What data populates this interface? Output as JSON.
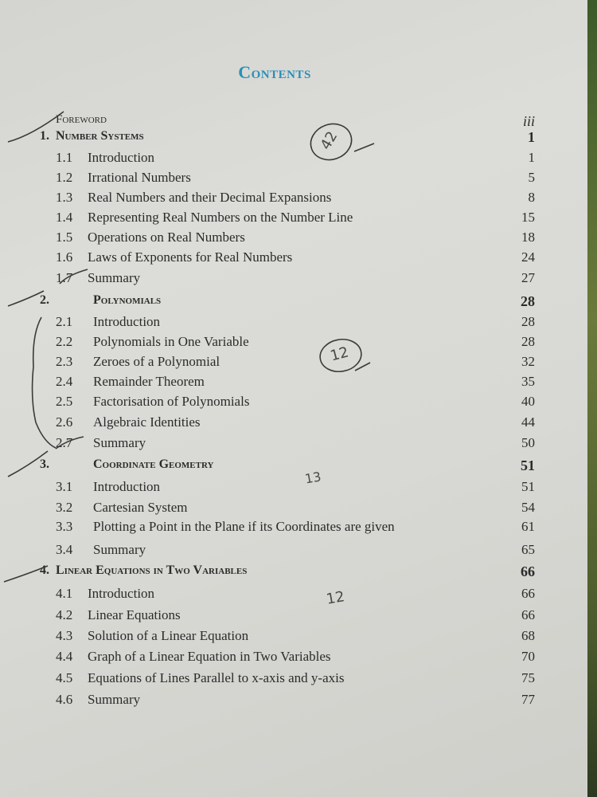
{
  "title": "Contents",
  "entries": [
    {
      "kind": "front",
      "num": "",
      "label": "Foreword",
      "page": "iii"
    },
    {
      "kind": "chapter",
      "num": "1.",
      "label": "Number Systems",
      "page": "1"
    },
    {
      "kind": "section",
      "num": "1.1",
      "label": "Introduction",
      "page": "1"
    },
    {
      "kind": "section",
      "num": "1.2",
      "label": "Irrational Numbers",
      "page": "5"
    },
    {
      "kind": "section",
      "num": "1.3",
      "label": "Real Numbers and their Decimal Expansions",
      "page": "8"
    },
    {
      "kind": "section",
      "num": "1.4",
      "label": "Representing Real Numbers on the Number Line",
      "page": "15"
    },
    {
      "kind": "section",
      "num": "1.5",
      "label": "Operations on Real Numbers",
      "page": "18"
    },
    {
      "kind": "section",
      "num": "1.6",
      "label": "Laws of Exponents for Real Numbers",
      "page": "24"
    },
    {
      "kind": "section",
      "num": "1.7",
      "label": "Summary",
      "page": "27"
    },
    {
      "kind": "chapter",
      "num": "2.",
      "label": "Polynomials",
      "page": "28"
    },
    {
      "kind": "section",
      "num": "2.1",
      "label": "Introduction",
      "page": "28"
    },
    {
      "kind": "section",
      "num": "2.2",
      "label": "Polynomials in One Variable",
      "page": "28"
    },
    {
      "kind": "section",
      "num": "2.3",
      "label": "Zeroes of a Polynomial",
      "page": "32"
    },
    {
      "kind": "section",
      "num": "2.4",
      "label": "Remainder Theorem",
      "page": "35"
    },
    {
      "kind": "section",
      "num": "2.5",
      "label": "Factorisation of Polynomials",
      "page": "40"
    },
    {
      "kind": "section",
      "num": "2.6",
      "label": "Algebraic Identities",
      "page": "44"
    },
    {
      "kind": "section",
      "num": "2.7",
      "label": "Summary",
      "page": "50"
    },
    {
      "kind": "chapter",
      "num": "3.",
      "label": "Coordinate Geometry",
      "page": "51"
    },
    {
      "kind": "section",
      "num": "3.1",
      "label": "Introduction",
      "page": "51"
    },
    {
      "kind": "section",
      "num": "3.2",
      "label": "Cartesian System",
      "page": "54"
    },
    {
      "kind": "section",
      "num": "3.3",
      "label": "Plotting a Point in the Plane if its Coordinates are given",
      "page": "61"
    },
    {
      "kind": "section",
      "num": "3.4",
      "label": "Summary",
      "page": "65"
    },
    {
      "kind": "chapter",
      "num": "4.",
      "label": "Linear Equations in Two Variables",
      "page": "66"
    },
    {
      "kind": "section",
      "num": "4.1",
      "label": "Introduction",
      "page": "66"
    },
    {
      "kind": "section",
      "num": "4.2",
      "label": "Linear Equations",
      "page": "66"
    },
    {
      "kind": "section",
      "num": "4.3",
      "label": "Solution of a Linear Equation",
      "page": "68"
    },
    {
      "kind": "section",
      "num": "4.4",
      "label": "Graph of a Linear Equation in Two Variables",
      "page": "70"
    },
    {
      "kind": "section",
      "num": "4.5",
      "label": "Equations of Lines Parallel to x-axis and y-axis",
      "page": "75"
    },
    {
      "kind": "section",
      "num": "4.6",
      "label": "Summary",
      "page": "77"
    }
  ],
  "handwritten": [
    "42",
    "12",
    "13",
    "12"
  ],
  "colors": {
    "title": "#2a8fb8",
    "text": "#2b2b2b",
    "ink": "#4a4a4a"
  }
}
